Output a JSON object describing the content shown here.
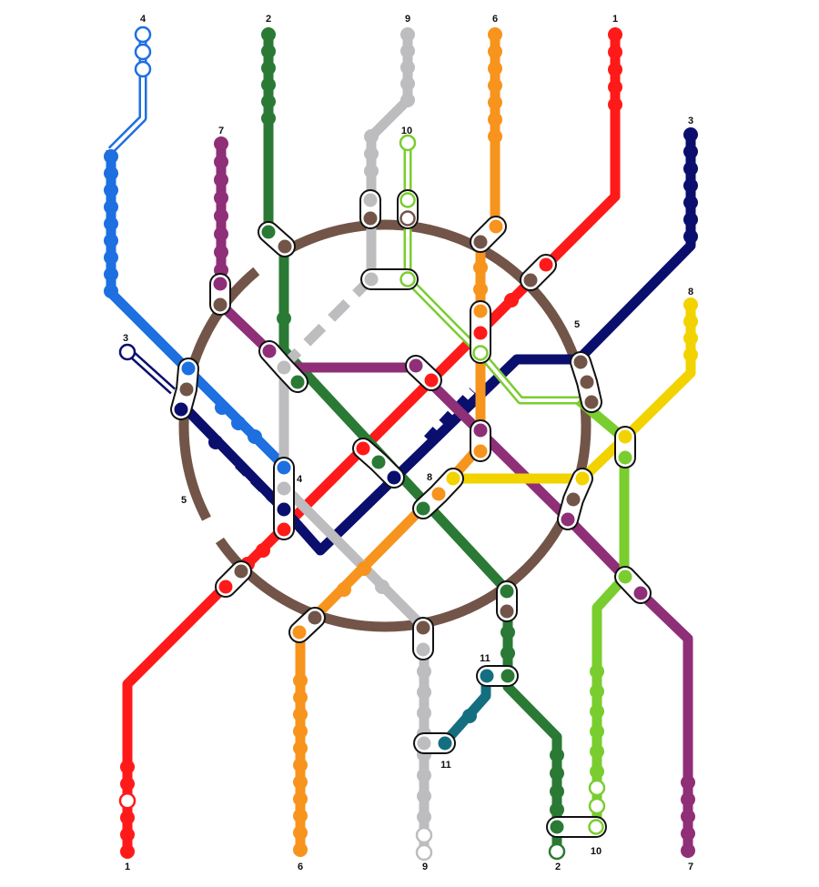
{
  "lines": [
    {
      "id": "1",
      "color": "#ff1a1a",
      "label": "1",
      "end_label": "1"
    },
    {
      "id": "2",
      "color": "#2a7a35",
      "label": "2",
      "end_label": "2"
    },
    {
      "id": "3",
      "color": "#0a0f6e",
      "label": "3",
      "end_label": "3"
    },
    {
      "id": "4",
      "color": "#1e6fe0",
      "label": "4",
      "end_label": "4"
    },
    {
      "id": "5",
      "color": "#725548",
      "label": "5",
      "end_label": "5"
    },
    {
      "id": "6",
      "color": "#f7941d",
      "label": "6",
      "end_label": "6"
    },
    {
      "id": "7",
      "color": "#8e2f78",
      "label": "7",
      "end_label": "7"
    },
    {
      "id": "8",
      "color": "#f2d300",
      "label": "8",
      "end_label": "8"
    },
    {
      "id": "9",
      "color": "#bdbdbf",
      "label": "9",
      "end_label": "9"
    },
    {
      "id": "10",
      "color": "#7acd2f",
      "label": "10",
      "end_label": "10"
    },
    {
      "id": "11",
      "color": "#136f80",
      "label": "11",
      "end_label": "11"
    }
  ]
}
